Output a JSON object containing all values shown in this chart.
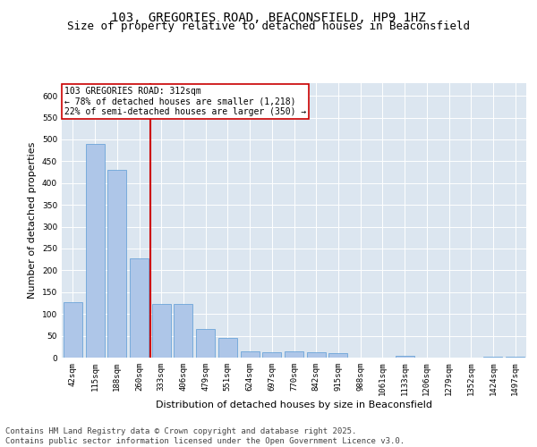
{
  "title_line1": "103, GREGORIES ROAD, BEACONSFIELD, HP9 1HZ",
  "title_line2": "Size of property relative to detached houses in Beaconsfield",
  "xlabel": "Distribution of detached houses by size in Beaconsfield",
  "ylabel": "Number of detached properties",
  "categories": [
    "42sqm",
    "115sqm",
    "188sqm",
    "260sqm",
    "333sqm",
    "406sqm",
    "479sqm",
    "551sqm",
    "624sqm",
    "697sqm",
    "770sqm",
    "842sqm",
    "915sqm",
    "988sqm",
    "1061sqm",
    "1133sqm",
    "1206sqm",
    "1279sqm",
    "1352sqm",
    "1424sqm",
    "1497sqm"
  ],
  "values": [
    127,
    490,
    430,
    228,
    122,
    122,
    65,
    45,
    14,
    12,
    14,
    12,
    10,
    0,
    0,
    5,
    0,
    0,
    0,
    2,
    2
  ],
  "bar_color": "#aec6e8",
  "bar_edge_color": "#5b9bd5",
  "vline_color": "#cc0000",
  "annotation_text": "103 GREGORIES ROAD: 312sqm\n← 78% of detached houses are smaller (1,218)\n22% of semi-detached houses are larger (350) →",
  "annotation_box_color": "#ffffff",
  "annotation_box_edge": "#cc0000",
  "ylim": [
    0,
    630
  ],
  "yticks": [
    0,
    50,
    100,
    150,
    200,
    250,
    300,
    350,
    400,
    450,
    500,
    550,
    600
  ],
  "background_color": "#dce6f0",
  "footer_text": "Contains HM Land Registry data © Crown copyright and database right 2025.\nContains public sector information licensed under the Open Government Licence v3.0.",
  "title_fontsize": 10,
  "subtitle_fontsize": 9,
  "axis_label_fontsize": 8,
  "tick_fontsize": 6.5,
  "footer_fontsize": 6.5
}
